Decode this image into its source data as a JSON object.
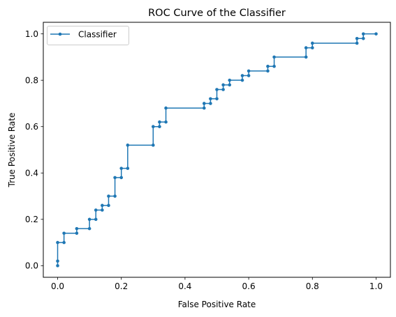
{
  "chart_data": {
    "type": "line",
    "title": "ROC Curve of the Classifier",
    "xlabel": "False Positive Rate",
    "ylabel": "True Positive Rate",
    "xlim": [
      -0.045,
      1.045
    ],
    "ylim": [
      -0.05,
      1.05
    ],
    "xticks": [
      0.0,
      0.2,
      0.4,
      0.6,
      0.8,
      1.0
    ],
    "xtick_labels": [
      "0.0",
      "0.2",
      "0.4",
      "0.6",
      "0.8",
      "1.0"
    ],
    "yticks": [
      0.0,
      0.2,
      0.4,
      0.6,
      0.8,
      1.0
    ],
    "ytick_labels": [
      "0.0",
      "0.2",
      "0.4",
      "0.6",
      "0.8",
      "1.0"
    ],
    "grid": false,
    "legend_position": "upper-left",
    "step": "post",
    "series": [
      {
        "name": "Classifier",
        "color": "#1f77b4",
        "marker": "point",
        "x": [
          0.0,
          0.0,
          0.0,
          0.02,
          0.02,
          0.06,
          0.06,
          0.1,
          0.1,
          0.12,
          0.12,
          0.14,
          0.14,
          0.16,
          0.16,
          0.18,
          0.18,
          0.2,
          0.2,
          0.22,
          0.22,
          0.3,
          0.3,
          0.32,
          0.32,
          0.34,
          0.34,
          0.46,
          0.46,
          0.48,
          0.48,
          0.5,
          0.5,
          0.52,
          0.52,
          0.54,
          0.54,
          0.58,
          0.58,
          0.6,
          0.6,
          0.66,
          0.66,
          0.68,
          0.68,
          0.78,
          0.78,
          0.8,
          0.8,
          0.94,
          0.94,
          0.96,
          0.96,
          1.0
        ],
        "y": [
          0.0,
          0.02,
          0.1,
          0.1,
          0.14,
          0.14,
          0.16,
          0.16,
          0.2,
          0.2,
          0.24,
          0.24,
          0.26,
          0.26,
          0.3,
          0.3,
          0.38,
          0.38,
          0.42,
          0.42,
          0.52,
          0.52,
          0.6,
          0.6,
          0.62,
          0.62,
          0.68,
          0.68,
          0.7,
          0.7,
          0.72,
          0.72,
          0.76,
          0.76,
          0.78,
          0.78,
          0.8,
          0.8,
          0.82,
          0.82,
          0.84,
          0.84,
          0.86,
          0.86,
          0.9,
          0.9,
          0.94,
          0.94,
          0.96,
          0.96,
          0.98,
          0.98,
          1.0,
          1.0
        ]
      }
    ]
  }
}
